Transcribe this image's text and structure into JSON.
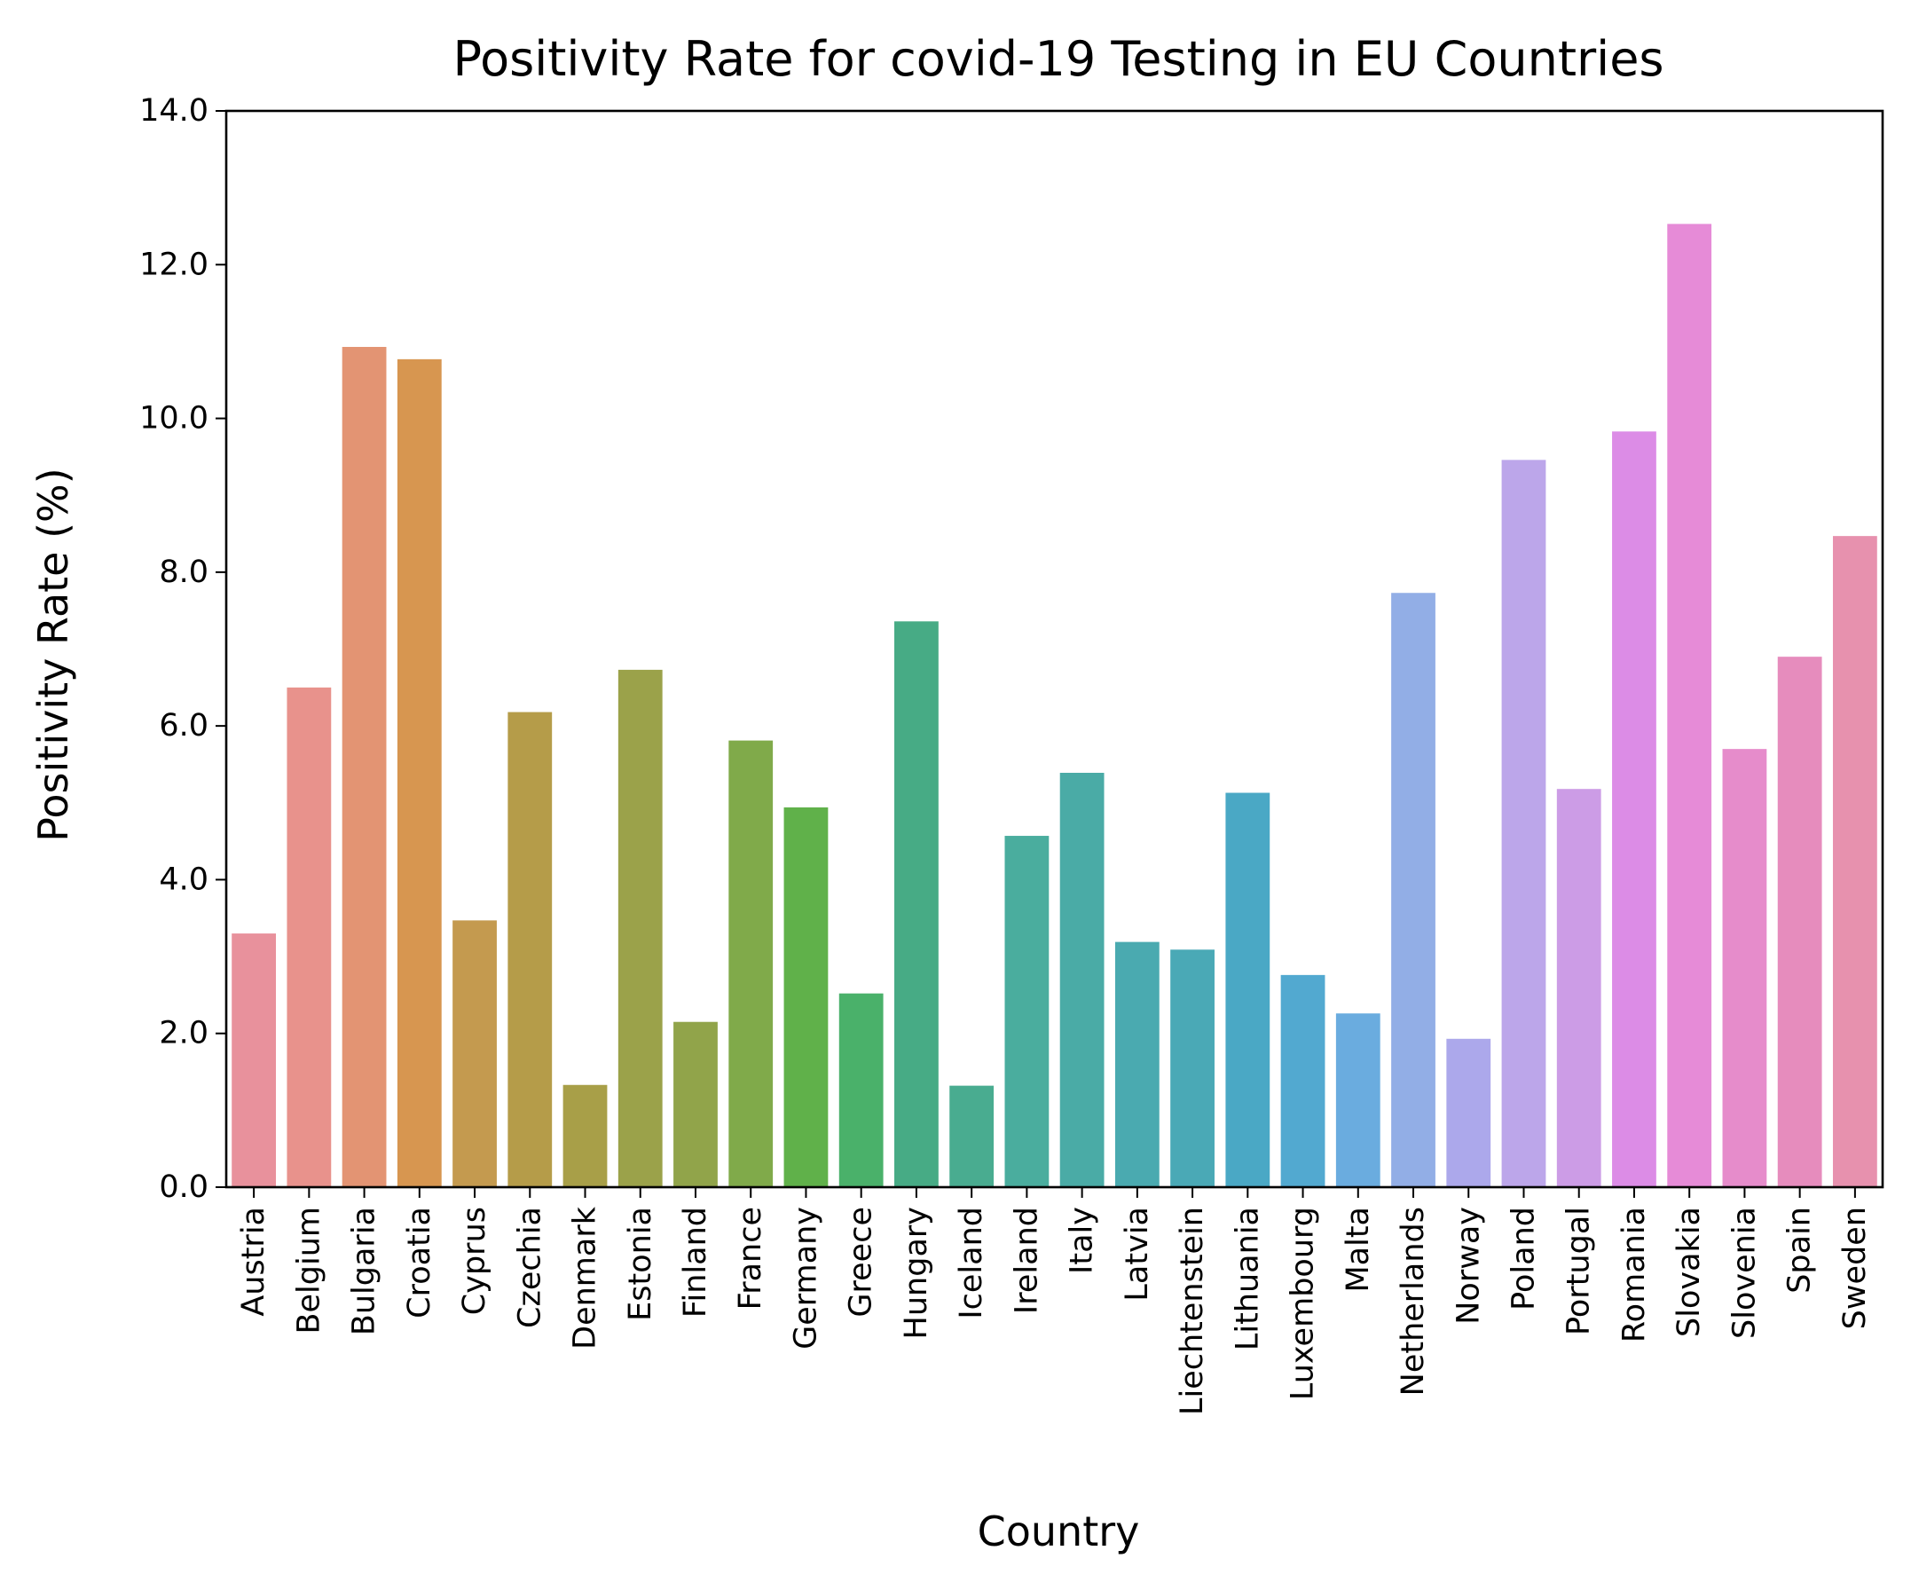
{
  "chart_data": {
    "type": "bar",
    "title": "Positivity Rate for covid-19 Testing in EU Countries",
    "xlabel": "Country",
    "ylabel": "Positivity Rate (%)",
    "ylim": [
      0,
      14
    ],
    "yticks": [
      "0.0",
      "2.0",
      "4.0",
      "6.0",
      "8.0",
      "10.0",
      "12.0",
      "14.0"
    ],
    "grid": false,
    "legend": "none",
    "categories": [
      "Austria",
      "Belgium",
      "Bulgaria",
      "Croatia",
      "Cyprus",
      "Czechia",
      "Denmark",
      "Estonia",
      "Finland",
      "France",
      "Germany",
      "Greece",
      "Hungary",
      "Iceland",
      "Ireland",
      "Italy",
      "Latvia",
      "Liechtenstein",
      "Lithuania",
      "Luxembourg",
      "Malta",
      "Netherlands",
      "Norway",
      "Poland",
      "Portugal",
      "Romania",
      "Slovakia",
      "Slovenia",
      "Spain",
      "Sweden"
    ],
    "values": [
      3.3,
      6.5,
      10.93,
      10.77,
      3.47,
      6.18,
      1.33,
      6.73,
      2.15,
      5.81,
      4.94,
      2.52,
      7.36,
      1.32,
      4.57,
      5.39,
      3.19,
      3.09,
      5.13,
      2.76,
      2.26,
      7.73,
      1.93,
      9.46,
      5.18,
      9.83,
      12.53,
      5.7,
      6.9,
      8.47
    ],
    "colors": [
      "#e8919c",
      "#e8928c",
      "#e39473",
      "#d79650",
      "#c49a4f",
      "#b59c49",
      "#a89f48",
      "#9ba24a",
      "#91a44a",
      "#80aa4a",
      "#60b14a",
      "#4ab16a",
      "#47ab85",
      "#49ac90",
      "#4aad9e",
      "#4aaba6",
      "#4aaab0",
      "#4aa9b6",
      "#4aa8c5",
      "#52a9d0",
      "#6aacdf",
      "#92aee6",
      "#aca8eb",
      "#bca6ea",
      "#cc9ce6",
      "#dc8ce6",
      "#e68bd7",
      "#e68ccb",
      "#e68cbd",
      "#e791ae"
    ]
  }
}
